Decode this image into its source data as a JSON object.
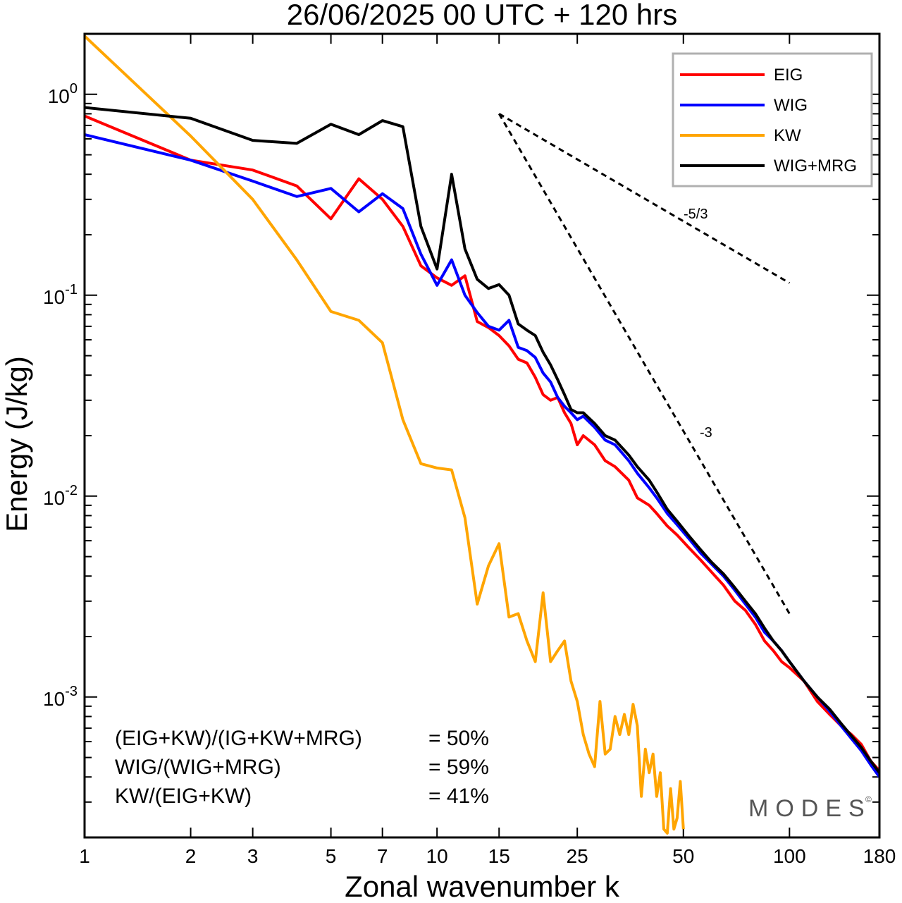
{
  "chart_data": {
    "type": "line",
    "title": "26/06/2025  00 UTC  + 120 hrs",
    "xlabel": "Zonal wavenumber k",
    "ylabel": "Energy (J/kg)",
    "xscale": "log",
    "yscale": "log",
    "xlim": [
      1,
      180
    ],
    "ylim": [
      0.0002,
      2
    ],
    "xticks": [
      1,
      2,
      3,
      5,
      7,
      10,
      15,
      25,
      50,
      100,
      180
    ],
    "xtick_labels": [
      "1",
      "2",
      "3",
      "5",
      "7",
      "10",
      "15",
      "25",
      "50",
      "100",
      "180"
    ],
    "yticks": [
      {
        "value": 1,
        "base": "10",
        "exp": "0"
      },
      {
        "value": 0.1,
        "base": "10",
        "exp": "-1"
      },
      {
        "value": 0.01,
        "base": "10",
        "exp": "-2"
      },
      {
        "value": 0.001,
        "base": "10",
        "exp": "-3"
      }
    ],
    "grid": false,
    "legend_position": "top-right",
    "series": [
      {
        "name": "EIG",
        "color": "#ff0000",
        "points": [
          [
            1,
            0.78
          ],
          [
            2,
            0.47
          ],
          [
            3,
            0.42
          ],
          [
            4,
            0.35
          ],
          [
            5,
            0.24
          ],
          [
            6,
            0.38
          ],
          [
            7,
            0.3
          ],
          [
            8,
            0.22
          ],
          [
            9,
            0.14
          ],
          [
            10,
            0.122
          ],
          [
            11,
            0.112
          ],
          [
            12,
            0.125
          ],
          [
            13,
            0.074
          ],
          [
            14,
            0.069
          ],
          [
            15,
            0.063
          ],
          [
            16,
            0.056
          ],
          [
            17,
            0.048
          ],
          [
            18,
            0.046
          ],
          [
            19,
            0.039
          ],
          [
            20,
            0.032
          ],
          [
            21,
            0.03
          ],
          [
            22,
            0.031
          ],
          [
            23,
            0.026
          ],
          [
            24,
            0.023
          ],
          [
            25,
            0.018
          ],
          [
            26,
            0.02
          ],
          [
            28,
            0.018
          ],
          [
            30,
            0.015
          ],
          [
            32,
            0.014
          ],
          [
            35,
            0.012
          ],
          [
            37,
            0.0098
          ],
          [
            40,
            0.009
          ],
          [
            42,
            0.0082
          ],
          [
            45,
            0.0071
          ],
          [
            48,
            0.0064
          ],
          [
            52,
            0.0055
          ],
          [
            56,
            0.0048
          ],
          [
            60,
            0.0042
          ],
          [
            65,
            0.0036
          ],
          [
            70,
            0.003
          ],
          [
            75,
            0.0027
          ],
          [
            80,
            0.0023
          ],
          [
            85,
            0.0019
          ],
          [
            90,
            0.0017
          ],
          [
            95,
            0.0015
          ],
          [
            100,
            0.0014
          ],
          [
            110,
            0.0012
          ],
          [
            120,
            0.00095
          ],
          [
            130,
            0.00082
          ],
          [
            140,
            0.00072
          ],
          [
            150,
            0.00065
          ],
          [
            160,
            0.00058
          ],
          [
            170,
            0.00048
          ],
          [
            180,
            0.00043
          ]
        ]
      },
      {
        "name": "WIG",
        "color": "#0000ff",
        "points": [
          [
            1,
            0.63
          ],
          [
            2,
            0.47
          ],
          [
            3,
            0.37
          ],
          [
            4,
            0.31
          ],
          [
            5,
            0.34
          ],
          [
            6,
            0.26
          ],
          [
            7,
            0.32
          ],
          [
            8,
            0.27
          ],
          [
            9,
            0.16
          ],
          [
            10,
            0.112
          ],
          [
            11,
            0.15
          ],
          [
            12,
            0.1
          ],
          [
            13,
            0.082
          ],
          [
            14,
            0.07
          ],
          [
            15,
            0.067
          ],
          [
            16,
            0.075
          ],
          [
            17,
            0.055
          ],
          [
            18,
            0.053
          ],
          [
            19,
            0.049
          ],
          [
            20,
            0.041
          ],
          [
            21,
            0.037
          ],
          [
            22,
            0.031
          ],
          [
            23,
            0.028
          ],
          [
            24,
            0.026
          ],
          [
            25,
            0.024
          ],
          [
            26,
            0.025
          ],
          [
            28,
            0.022
          ],
          [
            30,
            0.019
          ],
          [
            32,
            0.018
          ],
          [
            35,
            0.015
          ],
          [
            37,
            0.013
          ],
          [
            40,
            0.011
          ],
          [
            42,
            0.0098
          ],
          [
            45,
            0.0082
          ],
          [
            48,
            0.0072
          ],
          [
            52,
            0.0061
          ],
          [
            56,
            0.0052
          ],
          [
            60,
            0.0046
          ],
          [
            65,
            0.004
          ],
          [
            70,
            0.0034
          ],
          [
            75,
            0.0029
          ],
          [
            80,
            0.0025
          ],
          [
            85,
            0.0021
          ],
          [
            90,
            0.0019
          ],
          [
            95,
            0.0017
          ],
          [
            100,
            0.0015
          ],
          [
            110,
            0.0012
          ],
          [
            120,
            0.001
          ],
          [
            130,
            0.00085
          ],
          [
            140,
            0.00072
          ],
          [
            150,
            0.00062
          ],
          [
            160,
            0.00054
          ],
          [
            170,
            0.00046
          ],
          [
            180,
            0.0004
          ]
        ]
      },
      {
        "name": "KW",
        "color": "#ffa500",
        "points": [
          [
            1,
            1.95
          ],
          [
            2,
            0.62
          ],
          [
            3,
            0.3
          ],
          [
            4,
            0.15
          ],
          [
            5,
            0.083
          ],
          [
            6,
            0.075
          ],
          [
            7,
            0.058
          ],
          [
            8,
            0.024
          ],
          [
            9,
            0.0145
          ],
          [
            10,
            0.0138
          ],
          [
            11,
            0.0135
          ],
          [
            12,
            0.0078
          ],
          [
            13,
            0.0029
          ],
          [
            14,
            0.0045
          ],
          [
            15,
            0.0058
          ],
          [
            16,
            0.0025
          ],
          [
            17,
            0.0026
          ],
          [
            18,
            0.0019
          ],
          [
            19,
            0.0015
          ],
          [
            20,
            0.0033
          ],
          [
            21,
            0.0015
          ],
          [
            22,
            0.0017
          ],
          [
            23,
            0.0019
          ],
          [
            24,
            0.0012
          ],
          [
            25,
            0.00095
          ],
          [
            26,
            0.00065
          ],
          [
            27,
            0.00052
          ],
          [
            28,
            0.00045
          ],
          [
            29,
            0.00095
          ],
          [
            30,
            0.00052
          ],
          [
            31,
            0.00055
          ],
          [
            32,
            0.0008
          ],
          [
            33,
            0.00065
          ],
          [
            34,
            0.00082
          ],
          [
            35,
            0.00065
          ],
          [
            36,
            0.00092
          ],
          [
            37,
            0.00072
          ],
          [
            38,
            0.00032
          ],
          [
            39,
            0.00055
          ],
          [
            40,
            0.00042
          ],
          [
            41,
            0.00052
          ],
          [
            42,
            0.00032
          ],
          [
            43,
            0.00042
          ],
          [
            44,
            0.00022
          ],
          [
            45,
            0.00021
          ],
          [
            46,
            0.00035
          ],
          [
            47,
            0.00022
          ],
          [
            48,
            0.00025
          ],
          [
            49,
            0.00038
          ],
          [
            50,
            0.00022
          ]
        ]
      },
      {
        "name": "WIG+MRG",
        "color": "#000000",
        "points": [
          [
            1,
            0.86
          ],
          [
            2,
            0.76
          ],
          [
            3,
            0.59
          ],
          [
            4,
            0.57
          ],
          [
            5,
            0.71
          ],
          [
            6,
            0.63
          ],
          [
            7,
            0.74
          ],
          [
            8,
            0.69
          ],
          [
            9,
            0.22
          ],
          [
            10,
            0.135
          ],
          [
            11,
            0.4
          ],
          [
            12,
            0.17
          ],
          [
            13,
            0.12
          ],
          [
            14,
            0.108
          ],
          [
            15,
            0.113
          ],
          [
            16,
            0.1
          ],
          [
            17,
            0.072
          ],
          [
            18,
            0.067
          ],
          [
            19,
            0.063
          ],
          [
            20,
            0.052
          ],
          [
            21,
            0.045
          ],
          [
            22,
            0.038
          ],
          [
            23,
            0.032
          ],
          [
            24,
            0.027
          ],
          [
            25,
            0.026
          ],
          [
            26,
            0.026
          ],
          [
            28,
            0.023
          ],
          [
            30,
            0.02
          ],
          [
            32,
            0.019
          ],
          [
            35,
            0.016
          ],
          [
            37,
            0.014
          ],
          [
            40,
            0.012
          ],
          [
            42,
            0.0105
          ],
          [
            45,
            0.0086
          ],
          [
            48,
            0.0075
          ],
          [
            52,
            0.0063
          ],
          [
            56,
            0.0054
          ],
          [
            60,
            0.0047
          ],
          [
            65,
            0.0041
          ],
          [
            70,
            0.0035
          ],
          [
            75,
            0.003
          ],
          [
            80,
            0.0026
          ],
          [
            85,
            0.0022
          ],
          [
            90,
            0.0019
          ],
          [
            95,
            0.0017
          ],
          [
            100,
            0.0015
          ],
          [
            110,
            0.0012
          ],
          [
            120,
            0.001
          ],
          [
            130,
            0.00087
          ],
          [
            140,
            0.00074
          ],
          [
            150,
            0.00064
          ],
          [
            160,
            0.00056
          ],
          [
            170,
            0.00048
          ],
          [
            180,
            0.00042
          ]
        ]
      }
    ],
    "reference_lines": [
      {
        "label": "-5/3",
        "x": [
          15,
          100
        ],
        "y": [
          0.8,
          0.115
        ]
      },
      {
        "label": "-3",
        "x": [
          15,
          100
        ],
        "y": [
          0.8,
          0.0026
        ]
      }
    ],
    "annotations": [
      {
        "label": "(EIG+KW)/(IG+KW+MRG)",
        "value": "= 50%"
      },
      {
        "label": "WIG/(WIG+MRG)",
        "value": "= 59%"
      },
      {
        "label": "KW/(EIG+KW)",
        "value": "= 41%"
      }
    ],
    "watermark": "MODES",
    "watermark_mark": "©"
  }
}
